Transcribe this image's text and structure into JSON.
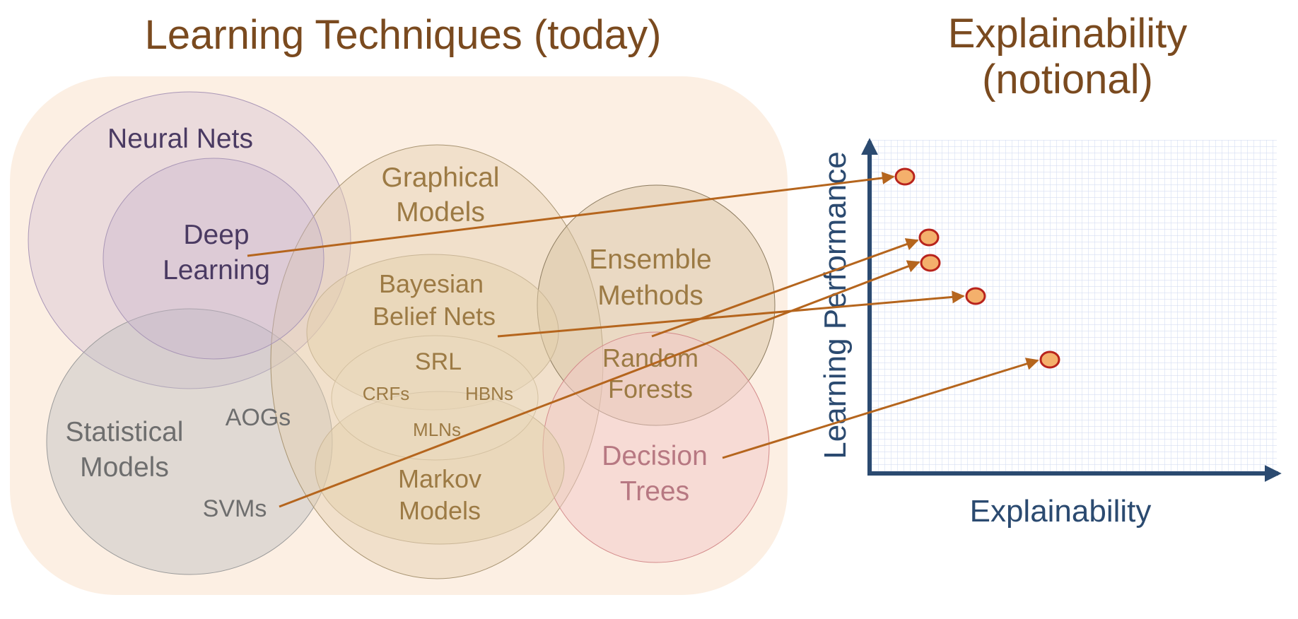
{
  "titles": {
    "left": "Learning Techniques (today)",
    "right_line1": "Explainability",
    "right_line2": "(notional)"
  },
  "diagram": {
    "neural_nets": "Neural Nets",
    "deep_learning_1": "Deep",
    "deep_learning_2": "Learning",
    "graphical_models_1": "Graphical",
    "graphical_models_2": "Models",
    "bayesian_1": "Bayesian",
    "bayesian_2": "Belief Nets",
    "srl": "SRL",
    "crfs": "CRFs",
    "hbns": "HBNs",
    "mlns": "MLNs",
    "markov_1": "Markov",
    "markov_2": "Models",
    "ensemble_1": "Ensemble",
    "ensemble_2": "Methods",
    "random_forests_1": "Random",
    "random_forests_2": "Forests",
    "decision_trees_1": "Decision",
    "decision_trees_2": "Trees",
    "statistical_1": "Statistical",
    "statistical_2": "Models",
    "aogs": "AOGs",
    "svms": "SVMs"
  },
  "plot": {
    "xlabel": "Explainability",
    "ylabel": "Learning Performance"
  },
  "colors": {
    "title": "#7a4a1f",
    "arrow": "#b5651d",
    "axis": "#2b4a70",
    "grid": "#d6def2",
    "point_fill": "#f4b06c",
    "point_stroke": "#b8231c",
    "panel": "#fcefe3"
  }
}
